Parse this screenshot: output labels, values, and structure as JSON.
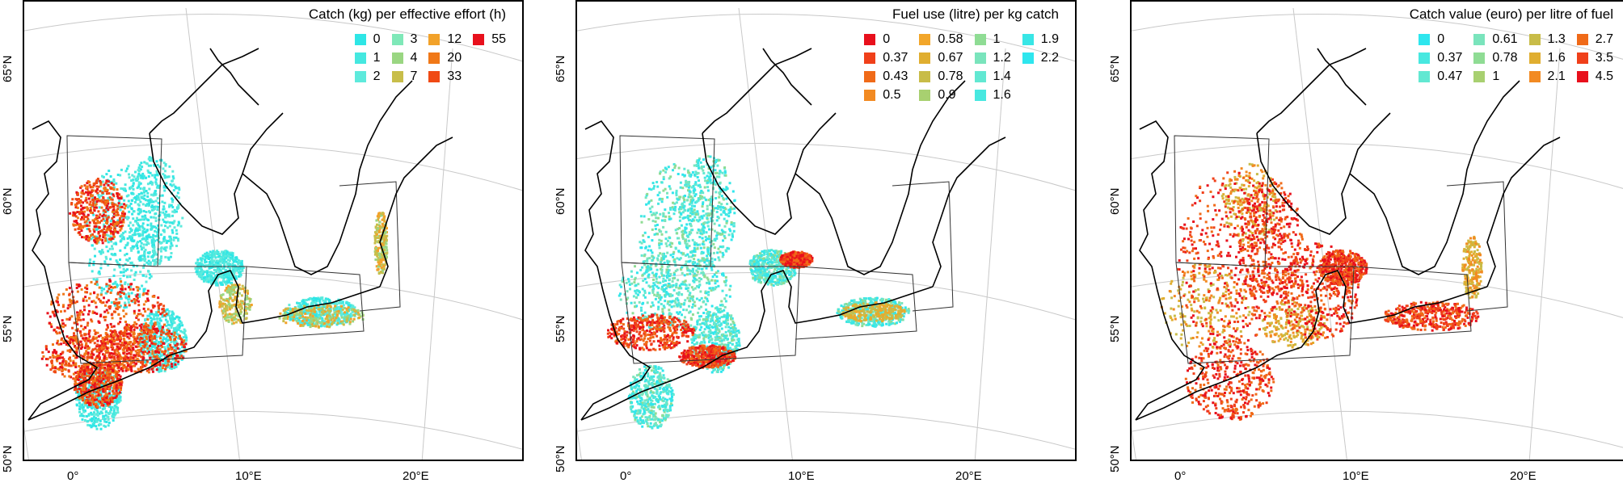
{
  "panels": [
    {
      "title": "Catch (kg) per effective effort (h)",
      "legend": [
        [
          {
            "label": "0",
            "color": "#2ee6e6"
          },
          {
            "label": "1",
            "color": "#45e8e0"
          },
          {
            "label": "2",
            "color": "#5eeadc"
          }
        ],
        [
          {
            "label": "3",
            "color": "#7fe8b8"
          },
          {
            "label": "4",
            "color": "#9ad682"
          },
          {
            "label": "7",
            "color": "#c8be4a"
          }
        ],
        [
          {
            "label": "12",
            "color": "#f2a22a"
          },
          {
            "label": "20",
            "color": "#f07818"
          },
          {
            "label": "33",
            "color": "#f04a14"
          }
        ],
        [
          {
            "label": "55",
            "color": "#e8101c"
          }
        ]
      ],
      "dominant_colors": [
        "#2ee6e6",
        "#f04a14",
        "#e8101c"
      ],
      "lat_labels": [
        "50°N",
        "55°N",
        "60°N",
        "65°N"
      ],
      "lon_labels": [
        "0°",
        "10°E",
        "20°E"
      ]
    },
    {
      "title": "Fuel use (litre) per kg catch",
      "legend": [
        [
          {
            "label": "0",
            "color": "#e8101c"
          },
          {
            "label": "0.37",
            "color": "#f0401a"
          },
          {
            "label": "0.43",
            "color": "#f06a18"
          },
          {
            "label": "0.5",
            "color": "#f28a22"
          }
        ],
        [
          {
            "label": "0.58",
            "color": "#f2a62a"
          },
          {
            "label": "0.67",
            "color": "#e0ae30"
          },
          {
            "label": "0.78",
            "color": "#c8bc48"
          },
          {
            "label": "0.9",
            "color": "#a8d070"
          }
        ],
        [
          {
            "label": "1",
            "color": "#8fdc94"
          },
          {
            "label": "1.2",
            "color": "#7ae4bc"
          },
          {
            "label": "1.4",
            "color": "#62e8d2"
          },
          {
            "label": "1.6",
            "color": "#48e8e0"
          }
        ],
        [
          {
            "label": "1.9",
            "color": "#38e6e6"
          },
          {
            "label": "2.2",
            "color": "#2ee6ee"
          }
        ]
      ],
      "dominant_colors": [
        "#2ee6e6",
        "#e8101c"
      ],
      "lat_labels": [
        "50°N",
        "55°N",
        "60°N",
        "65°N"
      ],
      "lon_labels": [
        "0°",
        "10°E",
        "20°E"
      ]
    },
    {
      "title": "Catch value (euro) per litre of fuel",
      "legend": [
        [
          {
            "label": "0",
            "color": "#2ee6ee"
          },
          {
            "label": "0.37",
            "color": "#48e8e0"
          },
          {
            "label": "0.47",
            "color": "#62e8d2"
          }
        ],
        [
          {
            "label": "0.61",
            "color": "#7ae4bc"
          },
          {
            "label": "0.78",
            "color": "#8fdc94"
          },
          {
            "label": "1",
            "color": "#a8d070"
          }
        ],
        [
          {
            "label": "1.3",
            "color": "#c8bc48"
          },
          {
            "label": "1.6",
            "color": "#e0ae30"
          },
          {
            "label": "2.1",
            "color": "#f28a22"
          }
        ],
        [
          {
            "label": "2.7",
            "color": "#f06a18"
          },
          {
            "label": "3.5",
            "color": "#f0401a"
          },
          {
            "label": "4.5",
            "color": "#e8101c"
          }
        ]
      ],
      "dominant_colors": [
        "#f04a14",
        "#e8101c",
        "#f28a22"
      ],
      "lat_labels": [
        "50°N",
        "55°N",
        "60°N",
        "65°N"
      ],
      "lon_labels": [
        "0°",
        "10°E",
        "20°E"
      ]
    }
  ]
}
